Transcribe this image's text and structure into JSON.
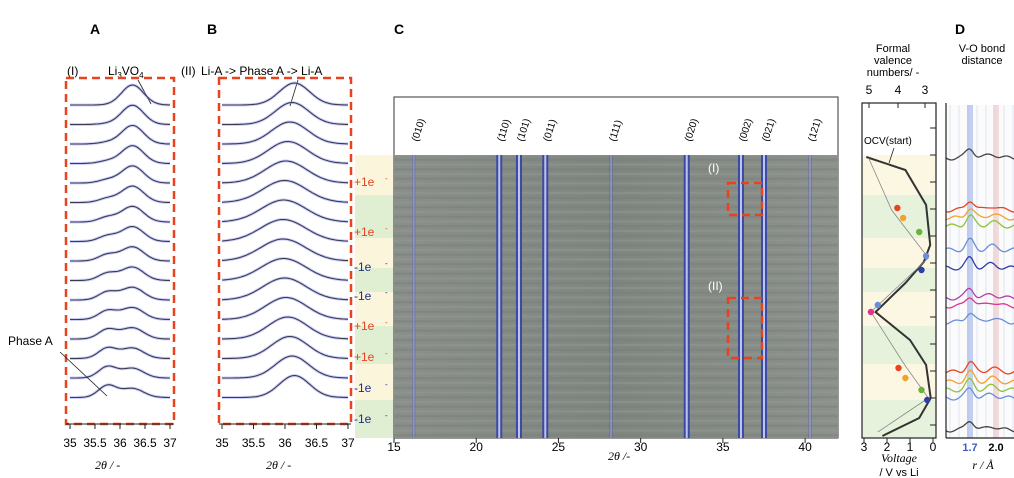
{
  "panels": {
    "A": {
      "letter": "A",
      "tag": "(I)",
      "compound_main": "Li",
      "compound_sub": "3",
      "compound_main2": "VO",
      "compound_sub2": "4",
      "annotation": "Phase A",
      "ticks": [
        "35",
        "35.5",
        "36",
        "36.5",
        "37"
      ],
      "xlabel": "2θ / -"
    },
    "B": {
      "letter": "B",
      "tag": "(II)",
      "title": "Li-A -> Phase A -> Li-A",
      "ticks": [
        "35",
        "35.5",
        "36",
        "36.5",
        "37"
      ],
      "xlabel": "2θ / -"
    },
    "C": {
      "letter": "C",
      "hkl": [
        "(010)",
        "(110)",
        "(101)",
        "(011)",
        "(111)",
        "(020)",
        "(002)",
        "(021)",
        "(121)"
      ],
      "region_labels": [
        "(I)",
        "(II)"
      ],
      "electrons": [
        "+1e",
        "+1e",
        "-1e",
        "-1e",
        "+1e",
        "+1e",
        "-1e",
        "-1e"
      ],
      "ticks": [
        "15",
        "20",
        "25",
        "30",
        "35",
        "40"
      ],
      "xlabel": "2θ /-"
    },
    "V": {
      "title_lines": [
        "Formal",
        "valence",
        "numbers/ -"
      ],
      "top_ticks": [
        "5",
        "4",
        "3"
      ],
      "bottom_ticks": [
        "3",
        "2",
        "1",
        "0"
      ],
      "annotation": "OCV(start)",
      "xlabel_lines": [
        "Voltage",
        "/ V  vs Li"
      ]
    },
    "D": {
      "letter": "D",
      "title_lines": [
        "V-O bond",
        "distance"
      ],
      "ticks": [
        "1.7",
        "2.0"
      ],
      "xlabel": "r / Å"
    }
  },
  "chart_data": [
    {
      "type": "line",
      "title": "(I) Li3VO4",
      "xlabel": "2θ / -",
      "xlim": [
        35,
        37
      ],
      "series_count": 16,
      "peak_positions": [
        35.75,
        36.25
      ],
      "annotations": [
        "Li3VO4",
        "Phase A"
      ]
    },
    {
      "type": "line",
      "title": "(II) Li-A -> Phase A -> Li-A",
      "xlabel": "2θ / -",
      "xlim": [
        35,
        37
      ],
      "series_count": 16,
      "peak_positions": [
        36.15
      ]
    },
    {
      "type": "heatmap",
      "xlabel": "2θ /-",
      "xlim": [
        15,
        42
      ],
      "reflections": [
        {
          "hkl": "(010)",
          "x": 16.2
        },
        {
          "hkl": "(110)",
          "x": 21.4
        },
        {
          "hkl": "(101)",
          "x": 22.6
        },
        {
          "hkl": "(011)",
          "x": 24.2
        },
        {
          "hkl": "(111)",
          "x": 28.2
        },
        {
          "hkl": "(020)",
          "x": 32.8
        },
        {
          "hkl": "(002)",
          "x": 36.1
        },
        {
          "hkl": "(021)",
          "x": 37.5
        },
        {
          "hkl": "(121)",
          "x": 40.3
        }
      ]
    },
    {
      "type": "line",
      "xlabel": "Voltage / V vs Li",
      "xlim": [
        3,
        0
      ],
      "top_axis": "Formal valence numbers/ -",
      "top_xlim": [
        5,
        3
      ],
      "annotations": [
        "OCV(start)"
      ]
    },
    {
      "type": "line",
      "title": "V-O bond distance",
      "xlabel": "r / Å",
      "marked_x": [
        1.7,
        2.0
      ]
    }
  ],
  "colors": {
    "dashed_box": "#e8431f",
    "plus_label": "#e8431f",
    "minus_label": "#1a2d8c",
    "trace": "#3a3a5a",
    "trace_glow": "#8e94e8",
    "band_yellow": "#fbf5dc",
    "band_green": "#e0efd2"
  }
}
